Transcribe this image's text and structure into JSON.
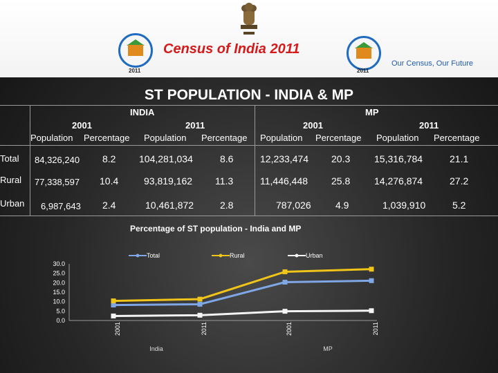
{
  "header": {
    "census_title": "Census of India  2011",
    "tagline": "Our Census,  Our Future",
    "emblem_icon": "national-emblem-icon",
    "logo_icon": "census-logo-icon",
    "logo_year": "2011"
  },
  "slide_title": "ST POPULATION - INDIA & MP",
  "table": {
    "group_headers": [
      "INDIA",
      "MP"
    ],
    "year_headers": [
      "2001",
      "2011",
      "2001",
      "2011"
    ],
    "col_headers": [
      "Population",
      "Percentage",
      "Population",
      "Percentage",
      "Population",
      "Percentage",
      "Population",
      "Percentage"
    ],
    "rows": [
      {
        "label": "Total",
        "values": [
          "84,326,240",
          "8.2",
          "104,281,034",
          "8.6",
          "12,233,474",
          "20.3",
          "15,316,784",
          "21.1"
        ]
      },
      {
        "label": "Rural",
        "values": [
          "77,338,597",
          "10.4",
          "93,819,162",
          "11.3",
          "11,446,448",
          "25.8",
          "14,276,874",
          "27.2"
        ]
      },
      {
        "label": "Urban",
        "values": [
          "6,987,643",
          "2.4",
          "10,461,872",
          "2.8",
          "787,026",
          "4.9",
          "1,039,910",
          "5.2"
        ]
      }
    ]
  },
  "chart_data": {
    "type": "line",
    "title": "Percentage of ST population - India and MP",
    "categories": [
      "2001",
      "2011",
      "2001",
      "2011"
    ],
    "group_labels": [
      "India",
      "MP"
    ],
    "ylim": [
      0,
      30
    ],
    "yticks": [
      "0.0",
      "5.0",
      "10.0",
      "15.0",
      "20.0",
      "25.0",
      "30.0"
    ],
    "legend_position": "top",
    "series": [
      {
        "name": "Total",
        "values": [
          8.2,
          8.6,
          20.3,
          21.1
        ],
        "color": "#7fa7e6"
      },
      {
        "name": "Rural",
        "values": [
          10.4,
          11.3,
          25.8,
          27.2
        ],
        "color": "#f0c419"
      },
      {
        "name": "Urban",
        "values": [
          2.4,
          2.8,
          4.9,
          5.2
        ],
        "color": "#f4f4f4"
      }
    ]
  }
}
